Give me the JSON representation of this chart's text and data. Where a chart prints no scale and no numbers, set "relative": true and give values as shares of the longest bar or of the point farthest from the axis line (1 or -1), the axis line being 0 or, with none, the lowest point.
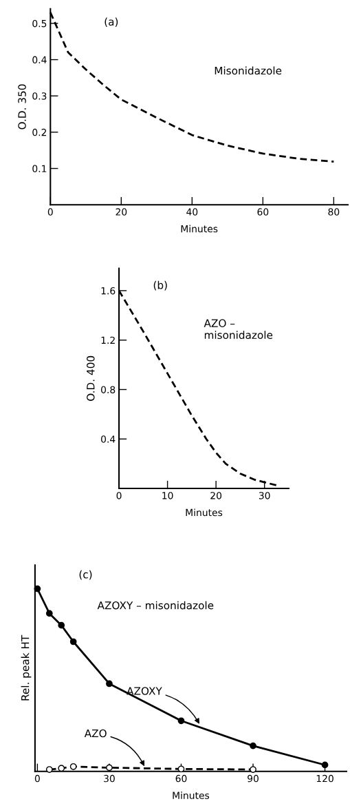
{
  "chart_data": [
    {
      "type": "line",
      "xlabel": "Minutes",
      "ylabel": "O.D. 350",
      "x": [
        0,
        5,
        10,
        15,
        20,
        30,
        40,
        50,
        60,
        70,
        80
      ],
      "xlim": [
        0,
        84
      ],
      "xticks": [
        0,
        20,
        40,
        60,
        80
      ],
      "ylim": [
        0,
        0.54
      ],
      "yticks": [
        0.1,
        0.2,
        0.3,
        0.4,
        0.5
      ],
      "series": [
        {
          "color": "#000000",
          "line_style": "dashed",
          "values": [
            0.53,
            0.42,
            0.373,
            0.33,
            0.29,
            0.24,
            0.192,
            0.163,
            0.141,
            0.127,
            0.119
          ]
        }
      ],
      "annotations": [
        "(a)",
        "Misonidazole"
      ]
    },
    {
      "type": "line",
      "xlabel": "Minutes",
      "ylabel": "O.D. 400",
      "x": [
        0,
        5,
        10,
        15,
        18,
        20,
        22,
        25,
        28,
        30,
        33
      ],
      "xlim": [
        0,
        35
      ],
      "xticks": [
        0,
        10,
        20,
        30
      ],
      "ylim": [
        0,
        1.78
      ],
      "yticks": [
        0.4,
        0.8,
        1.2,
        1.6
      ],
      "series": [
        {
          "color": "#000000",
          "line_style": "dashed",
          "values": [
            1.6,
            1.27,
            0.93,
            0.59,
            0.4,
            0.29,
            0.2,
            0.12,
            0.07,
            0.05,
            0.02
          ]
        }
      ],
      "annotations": [
        "(b)",
        "AZO –\nmisonidazole"
      ]
    },
    {
      "type": "line",
      "relative": true,
      "xlabel": "Minutes",
      "ylabel": "Rel. peak HT",
      "x": [
        0,
        5,
        10,
        15,
        30,
        60,
        90,
        120
      ],
      "xlim": [
        -1,
        129
      ],
      "xticks": [
        0,
        30,
        60,
        90,
        120
      ],
      "marker": "circle",
      "series": [
        {
          "color": "#000000",
          "line_style": "solid",
          "values": [
            1.0,
            0.865,
            0.8,
            0.71,
            0.48,
            0.277,
            0.14,
            0.035
          ]
        },
        {
          "color": "#000000",
          "line_style": "dashed",
          "x": [
            5,
            10,
            15,
            30,
            60,
            90
          ],
          "values": [
            0.01,
            0.017,
            0.026,
            0.02,
            0.013,
            0.01
          ]
        }
      ],
      "annotations": [
        "(c)",
        "AZOXY – misonidazole",
        {
          "text": "AZOXY",
          "x": 68,
          "y": 0.25
        },
        {
          "text": "AZO",
          "x": 45,
          "y": 0.018
        }
      ]
    }
  ]
}
